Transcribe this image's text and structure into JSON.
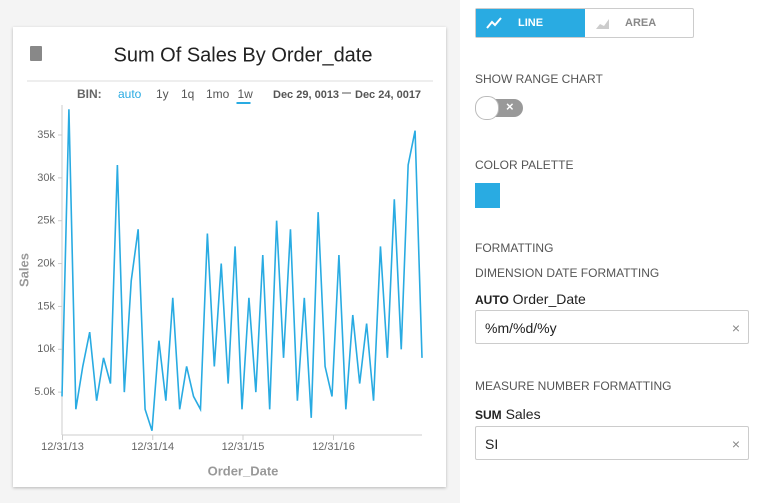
{
  "toolbar": {
    "bin_label": "BIN:",
    "bins": [
      "auto",
      "1y",
      "1q",
      "1mo",
      "1w"
    ],
    "range_start": "Dec 29, 0013",
    "range_end": "Dec 24, 0017"
  },
  "panel": {
    "chart_types": [
      "LINE",
      "AREA"
    ],
    "range_chart": "SHOW RANGE CHART",
    "color_palette": "COLOR PALETTE",
    "formatting": "FORMATTING",
    "dimension_heading": "DIMENSION DATE FORMATTING",
    "dimension_agg": "AUTO",
    "dimension_field": "Order_Date",
    "dimension_format": "%m/%d/%y",
    "measure_heading": "MEASURE NUMBER FORMATTING",
    "measure_agg": "SUM",
    "measure_field": "Sales",
    "measure_format": "SI"
  },
  "chart_data": {
    "type": "line",
    "title": "Sum Of Sales By Order_date",
    "x_label": "Order_Date",
    "y_label": "Sales",
    "color": "#29abe2",
    "x": [
      "2013-12-29",
      "2014-01-26",
      "2014-02-23",
      "2014-03-23",
      "2014-04-20",
      "2014-05-18",
      "2014-06-15",
      "2014-07-13",
      "2014-08-10",
      "2014-09-07",
      "2014-10-05",
      "2014-11-02",
      "2014-11-30",
      "2014-12-28",
      "2015-01-25",
      "2015-02-22",
      "2015-03-22",
      "2015-04-19",
      "2015-05-17",
      "2015-06-14",
      "2015-07-12",
      "2015-08-09",
      "2015-09-06",
      "2015-10-04",
      "2015-11-01",
      "2015-11-29",
      "2015-12-27",
      "2016-01-24",
      "2016-02-21",
      "2016-03-20",
      "2016-04-17",
      "2016-05-15",
      "2016-06-12",
      "2016-07-10",
      "2016-08-07",
      "2016-09-04",
      "2016-10-02",
      "2016-10-30",
      "2016-11-27",
      "2016-12-25",
      "2017-01-22",
      "2017-02-19",
      "2017-03-19",
      "2017-04-16",
      "2017-05-14",
      "2017-06-11",
      "2017-07-09",
      "2017-08-06",
      "2017-09-03",
      "2017-10-01",
      "2017-10-29",
      "2017-11-26",
      "2017-12-24"
    ],
    "values": [
      4500,
      38000,
      3000,
      8000,
      12000,
      4000,
      9000,
      6000,
      31500,
      5000,
      18000,
      24000,
      3000,
      500,
      11000,
      4000,
      16000,
      3000,
      8000,
      4500,
      3000,
      23500,
      8000,
      20000,
      6000,
      22000,
      3000,
      16000,
      5000,
      21000,
      3000,
      25000,
      9000,
      24000,
      4000,
      16000,
      2000,
      26000,
      8000,
      4500,
      21000,
      3000,
      14000,
      6000,
      13000,
      4000,
      22000,
      9000,
      27500,
      10000,
      31500,
      35500,
      9000
    ],
    "xlim": [
      "2013-12-29",
      "2017-12-24"
    ],
    "xticks": [
      {
        "value": "2013-12-31",
        "label": "12/31/13"
      },
      {
        "value": "2014-12-31",
        "label": "12/31/14"
      },
      {
        "value": "2015-12-31",
        "label": "12/31/15"
      },
      {
        "value": "2016-12-31",
        "label": "12/31/16"
      }
    ],
    "ylim": [
      0,
      38500
    ],
    "yticks": [
      {
        "value": 5000,
        "label": "5.0k"
      },
      {
        "value": 10000,
        "label": "10k"
      },
      {
        "value": 15000,
        "label": "15k"
      },
      {
        "value": 20000,
        "label": "20k"
      },
      {
        "value": 25000,
        "label": "25k"
      },
      {
        "value": 30000,
        "label": "30k"
      },
      {
        "value": 35000,
        "label": "35k"
      }
    ]
  }
}
